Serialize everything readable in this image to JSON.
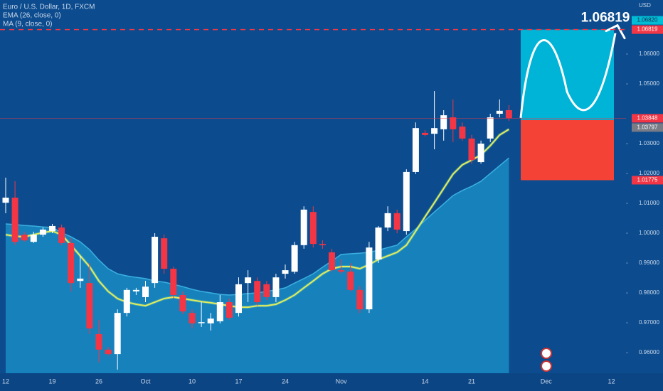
{
  "chart_data": {
    "type": "candlestick",
    "title": "Euro / U.S. Dollar, 1D, FXCM",
    "currency": "USD",
    "categories": [
      "12",
      null,
      null,
      null,
      null,
      "19",
      null,
      null,
      null,
      null,
      "26",
      null,
      null,
      null,
      null,
      "Oct",
      null,
      null,
      null,
      null,
      "10",
      null,
      null,
      null,
      null,
      "17",
      null,
      null,
      null,
      null,
      "24",
      null,
      null,
      null,
      null,
      null,
      "Nov",
      null,
      null,
      null,
      null,
      null,
      null,
      null,
      null,
      "14",
      null,
      null,
      null,
      null,
      "21",
      null,
      null,
      null,
      null,
      null,
      null,
      null,
      "Dec",
      null,
      null,
      null,
      null,
      null,
      null,
      "12"
    ],
    "open": [
      1.0102,
      1.0119,
      0.9995,
      0.9971,
      0.9995,
      1.0007,
      1.0019,
      0.9967,
      0.984,
      0.9833,
      0.9662,
      0.961,
      0.9595,
      0.9733,
      0.9805,
      0.9786,
      0.9833,
      0.9983,
      0.9881,
      0.9793,
      0.9733,
      0.97,
      0.9698,
      0.9705,
      0.9769,
      0.9733,
      0.9833,
      0.984,
      0.9829,
      0.9786,
      0.9864,
      0.9871,
      0.996,
      1.0071,
      0.9964,
      0.9936,
      0.9876,
      0.9871,
      0.981,
      0.9745,
      0.9912,
      1.0019,
      1.0067,
      1.0007,
      1.0205,
      1.0336,
      1.0333,
      1.0348,
      1.0388,
      1.0357,
      1.0317,
      1.0238,
      1.0317,
      1.04,
      1.0412,
      null,
      null,
      null,
      null,
      null,
      null,
      null,
      null,
      null,
      null,
      null
    ],
    "high": [
      1.0186,
      1.0174,
      1.0005,
      1.0005,
      1.0019,
      1.0031,
      1.0029,
      0.9983,
      0.9924,
      0.99,
      0.971,
      0.9619,
      0.9745,
      0.9817,
      0.9817,
      0.984,
      1.0,
      0.9995,
      0.9888,
      0.9805,
      0.9745,
      0.9769,
      0.9733,
      0.9793,
      0.9781,
      0.9852,
      0.9876,
      0.9852,
      0.984,
      0.9864,
      0.9895,
      0.9971,
      1.009,
      1.009,
      0.9976,
      0.9948,
      0.9912,
      0.99,
      0.9824,
      0.9971,
      1.0024,
      1.009,
      1.0079,
      1.0214,
      1.0371,
      1.0345,
      1.0476,
      1.0412,
      1.0448,
      1.0371,
      1.0329,
      1.031,
      1.04,
      1.0448,
      1.0429,
      null,
      null,
      null,
      null,
      null,
      null,
      null,
      null,
      null,
      null,
      null
    ],
    "low": [
      1.0067,
      0.996,
      0.9971,
      0.9967,
      0.9988,
      1.0,
      0.996,
      0.9805,
      0.9817,
      0.9662,
      0.9567,
      0.959,
      0.9543,
      0.9721,
      0.9793,
      0.9769,
      0.9817,
      0.9864,
      0.9781,
      0.9729,
      0.9681,
      0.9686,
      0.9674,
      0.9698,
      0.971,
      0.9721,
      0.9769,
      0.9757,
      0.9776,
      0.9769,
      0.9848,
      0.9864,
      0.9948,
      0.9952,
      0.9948,
      0.9871,
      0.9864,
      0.9805,
      0.9733,
      0.9733,
      0.99,
      1.0007,
      1.0,
      0.9995,
      1.0198,
      1.0324,
      1.0281,
      1.031,
      1.0305,
      1.031,
      1.0233,
      1.0233,
      1.0305,
      1.0388,
      1.0376,
      null,
      null,
      null,
      null,
      null,
      null,
      null,
      null,
      null,
      null,
      null
    ],
    "close": [
      1.0119,
      0.9971,
      0.9976,
      0.9995,
      1.0012,
      1.0024,
      0.9967,
      0.9833,
      0.9848,
      0.9681,
      0.961,
      0.9595,
      0.9733,
      0.981,
      0.981,
      0.9821,
      0.9988,
      0.9881,
      0.9793,
      0.9738,
      0.9698,
      0.9702,
      0.9714,
      0.9769,
      0.9717,
      0.9829,
      0.9852,
      0.9769,
      0.9786,
      0.9852,
      0.9876,
      0.996,
      1.0079,
      0.9964,
      0.996,
      0.9876,
      0.9871,
      0.981,
      0.9745,
      0.9952,
      1.0019,
      1.0067,
      1.0012,
      1.0205,
      1.0352,
      1.0329,
      1.0352,
      1.0395,
      1.0348,
      1.0317,
      1.0245,
      1.03,
      1.0388,
      1.041,
      1.0385,
      null,
      null,
      null,
      null,
      null,
      null,
      null,
      null,
      null,
      null,
      null
    ],
    "up_color": "#ffffff",
    "down_color": "#f23645",
    "series": [
      {
        "name": "EMA (26, close, 0)",
        "type": "line",
        "color": "#e2ec5c",
        "values": [
          0.9995,
          0.999,
          0.9988,
          0.9995,
          1.0002,
          1.0007,
          0.9995,
          0.996,
          0.9924,
          0.9888,
          0.984,
          0.9805,
          0.9781,
          0.9769,
          0.9762,
          0.9757,
          0.9769,
          0.9781,
          0.9786,
          0.9781,
          0.9776,
          0.9771,
          0.9767,
          0.9762,
          0.9757,
          0.9752,
          0.9752,
          0.9757,
          0.9757,
          0.9762,
          0.9776,
          0.9793,
          0.9817,
          0.984,
          0.9864,
          0.9881,
          0.9888,
          0.9888,
          0.9881,
          0.9895,
          0.9912,
          0.9924,
          0.9936,
          0.996,
          1.0007,
          1.0055,
          1.0102,
          1.015,
          1.0198,
          1.0229,
          1.0245,
          1.0262,
          1.0293,
          1.0329,
          1.0348,
          null,
          null,
          null,
          null,
          null,
          null,
          null,
          null,
          null,
          null,
          null
        ]
      },
      {
        "name": "MA (9, close, 0)",
        "type": "area",
        "color": "#1a8bc4",
        "values": [
          1.0031,
          1.0029,
          1.0026,
          1.0024,
          1.0021,
          1.0019,
          1.0002,
          0.9988,
          0.9971,
          0.9945,
          0.991,
          0.9881,
          0.9864,
          0.9857,
          0.9852,
          0.9848,
          0.984,
          0.9836,
          0.9829,
          0.9821,
          0.9812,
          0.9805,
          0.98,
          0.9795,
          0.9793,
          0.9795,
          0.9798,
          0.98,
          0.9805,
          0.981,
          0.9817,
          0.9833,
          0.9848,
          0.9864,
          0.9886,
          0.9907,
          0.9929,
          0.9931,
          0.9933,
          0.9936,
          0.9943,
          0.9952,
          0.996,
          0.9988,
          1.0014,
          1.0043,
          1.0071,
          1.0098,
          1.0126,
          1.0143,
          1.0157,
          1.0174,
          1.02,
          1.0226,
          1.0252,
          null,
          null,
          null,
          null,
          null,
          null,
          null,
          null,
          null,
          null,
          null
        ]
      }
    ],
    "ylim": [
      0.9531,
      1.0781
    ],
    "yticks": [
      {
        "value": 0.96,
        "label": "0.96000"
      },
      {
        "value": 0.97,
        "label": "0.97000"
      },
      {
        "value": 0.98,
        "label": "0.98000"
      },
      {
        "value": 0.99,
        "label": "0.99000"
      },
      {
        "value": 1.0,
        "label": "1.00000"
      },
      {
        "value": 1.01,
        "label": "1.01000"
      },
      {
        "value": 1.02,
        "label": "1.02000"
      },
      {
        "value": 1.03,
        "label": "1.03000"
      },
      {
        "value": 1.05,
        "label": "1.05000"
      },
      {
        "value": 1.06,
        "label": "1.06000"
      }
    ],
    "grid": false,
    "price_labels": [
      {
        "value": 1.06819,
        "label": "1.06819",
        "color": "#f23645"
      },
      {
        "value": 1.0682,
        "label": "1.06820",
        "color": "#00bcd4"
      },
      {
        "value": 1.03848,
        "label": "1.03848",
        "color": "#f23645"
      },
      {
        "value": 1.03797,
        "label": "1.03797",
        "color": "#787b86"
      },
      {
        "value": 1.01775,
        "label": "1.01775",
        "color": "#f23645"
      }
    ],
    "position": {
      "target": 1.06819,
      "entry": 1.0379,
      "stop": 1.01775,
      "target_color": "#00b4d8",
      "stop_color": "#f44336"
    }
  }
}
